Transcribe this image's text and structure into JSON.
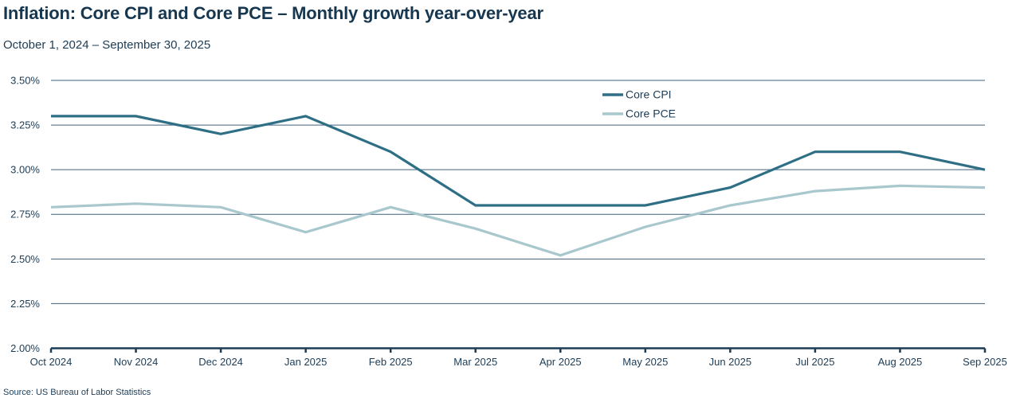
{
  "header": {
    "title": "Inflation: Core CPI and Core PCE – Monthly growth year-over-year",
    "subtitle": "October 1, 2024 – September 30, 2025"
  },
  "footer": {
    "source": "Source: US Bureau of Labor Statistics"
  },
  "colors": {
    "title_text": "#16374f",
    "axis_text": "#1d3c55",
    "axis_line": "#1d3c55",
    "gridline": "#3f607c",
    "core_cpi": "#2f6f85",
    "core_pce": "#a9c8cd"
  },
  "chart_data": {
    "type": "line",
    "title": "Inflation: Core CPI and Core PCE – Monthly growth year-over-year",
    "subtitle": "October 1, 2024 – September 30, 2025",
    "categories": [
      "Oct 2024",
      "Nov 2024",
      "Dec 2024",
      "Jan 2025",
      "Feb 2025",
      "Mar 2025",
      "Apr 2025",
      "May 2025",
      "Jun 2025",
      "Jul 2025",
      "Aug 2025",
      "Sep 2025"
    ],
    "series": [
      {
        "name": "Core CPI",
        "color_key": "core_cpi",
        "stroke_width": 3.2,
        "values": [
          3.3,
          3.3,
          3.2,
          3.3,
          3.1,
          2.8,
          2.8,
          2.8,
          2.9,
          3.1,
          3.1,
          3.0
        ]
      },
      {
        "name": "Core PCE",
        "color_key": "core_pce",
        "stroke_width": 3.2,
        "values": [
          2.79,
          2.81,
          2.79,
          2.65,
          2.79,
          2.67,
          2.52,
          2.68,
          2.8,
          2.88,
          2.91,
          2.9
        ]
      }
    ],
    "xlabel": "",
    "ylabel": "",
    "ylim": [
      2.0,
      3.5
    ],
    "y_tick_step": 0.25,
    "y_ticks": [
      "3.50%",
      "3.25%",
      "3.00%",
      "2.75%",
      "2.50%",
      "2.25%",
      "2.00%"
    ],
    "grid": "horizontal",
    "legend_position": "top-right-inside"
  }
}
